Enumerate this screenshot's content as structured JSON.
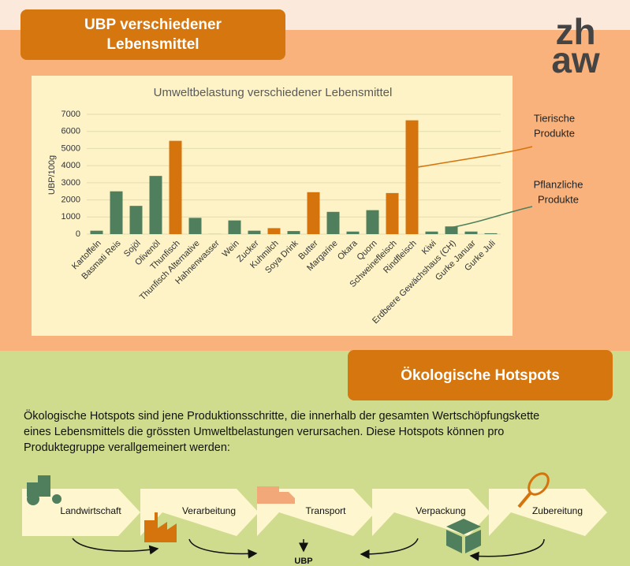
{
  "header": {
    "title_lines": [
      "UBP verschiedener",
      "Lebensmittel"
    ],
    "logo_lines": [
      "zh",
      "aw"
    ]
  },
  "chart_data": {
    "type": "bar",
    "title": "Umweltbelastung verschiedener Lebensmittel",
    "y_label": "UBP/100g",
    "categories": [
      "Kartoffeln",
      "Basmati Reis",
      "Sojöl",
      "Olivenöl",
      "Thunfisch",
      "Thunfisch Alternative",
      "Hahnenwasser",
      "Wein",
      "Zucker",
      "Kuhmilch",
      "Soya Drink",
      "Butter",
      "Margarine",
      "Okara",
      "Quorn",
      "Schweinefleisch",
      "Rindfleisch",
      "Kiwi",
      "Erdbeere Gewächshaus (CH)",
      "Gurke Januar",
      "Gurke Juli"
    ],
    "values": [
      200,
      2500,
      1650,
      3400,
      5450,
      950,
      5,
      800,
      200,
      350,
      180,
      2450,
      1300,
      150,
      1400,
      2400,
      6650,
      150,
      450,
      150,
      50
    ],
    "colors": [
      "#4f7f5c",
      "#4f7f5c",
      "#4f7f5c",
      "#4f7f5c",
      "#d5730d",
      "#4f7f5c",
      "#4f7f5c",
      "#4f7f5c",
      "#4f7f5c",
      "#d5730d",
      "#4f7f5c",
      "#d5730d",
      "#4f7f5c",
      "#4f7f5c",
      "#4f7f5c",
      "#d5730d",
      "#d5730d",
      "#4f7f5c",
      "#4f7f5c",
      "#4f7f5c",
      "#4f7f5c"
    ],
    "ylim": [
      0,
      7000
    ],
    "yticks": [
      0,
      1000,
      2000,
      3000,
      4000,
      5000,
      6000,
      7000
    ],
    "grid": true,
    "annotations": [
      {
        "lines": [
          "Tierische",
          "Produkte"
        ],
        "color": "#d5730d"
      },
      {
        "lines": [
          "Pflanzliche",
          "Produkte"
        ],
        "color": "#4f7f5c"
      }
    ]
  },
  "hotspots": {
    "title": "Ökologische Hotspots",
    "text_lines": [
      "Ökologische Hotspots sind jene Produktionsschritte, die innerhalb der gesamten Wertschöpfungskette",
      "eines Lebensmittels die grössten Umweltbelastungen verursachen. Diese Hotspots können pro",
      "Produktegruppe verallgemeinert werden:"
    ],
    "steps": [
      "Landwirtschaft",
      "Verarbeitung",
      "Transport",
      "Verpackung",
      "Zubereitung"
    ],
    "result": "UBP"
  }
}
